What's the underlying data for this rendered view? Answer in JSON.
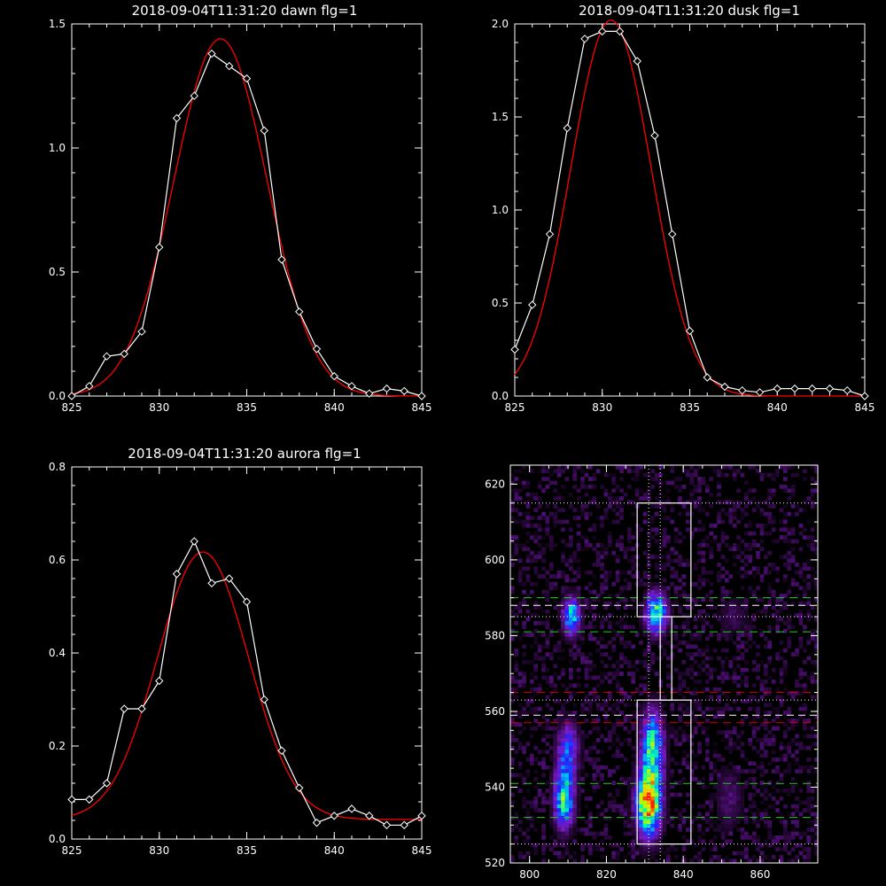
{
  "chart_data": [
    {
      "type": "line",
      "title": "2018-09-04T11:31:20 dawn flg=1",
      "xlim": [
        825,
        845
      ],
      "ylim": [
        0,
        1.5
      ],
      "xticks": [
        "825",
        "830",
        "835",
        "840",
        "845"
      ],
      "yticks": [
        "0.0",
        "0.5",
        "1.0",
        "1.5"
      ],
      "colors": {
        "data": "#ffffff",
        "fit": "#ff0000"
      },
      "series": [
        {
          "role": "data",
          "marker": "diamond",
          "x": [
            825,
            826,
            827,
            828,
            829,
            830,
            831,
            832,
            833,
            834,
            835,
            836,
            837,
            838,
            839,
            840,
            841,
            842,
            843,
            844,
            845
          ],
          "y": [
            0.0,
            0.04,
            0.16,
            0.17,
            0.26,
            0.6,
            1.12,
            1.21,
            1.38,
            1.33,
            1.28,
            1.07,
            0.55,
            0.34,
            0.19,
            0.08,
            0.04,
            0.01,
            0.03,
            0.02,
            0.0
          ]
        },
        {
          "role": "fit",
          "amp": 1.44,
          "center": 833.5,
          "sigma": 2.65,
          "offset": 0.0
        }
      ]
    },
    {
      "type": "line",
      "title": "2018-09-04T11:31:20 dusk flg=1",
      "xlim": [
        825,
        845
      ],
      "ylim": [
        0,
        2.0
      ],
      "xticks": [
        "825",
        "830",
        "835",
        "840",
        "845"
      ],
      "yticks": [
        "0.0",
        "0.5",
        "1.0",
        "1.5",
        "2.0"
      ],
      "colors": {
        "data": "#ffffff",
        "fit": "#ff0000"
      },
      "series": [
        {
          "role": "data",
          "marker": "diamond",
          "x": [
            825,
            826,
            827,
            828,
            829,
            830,
            831,
            832,
            833,
            834,
            835,
            836,
            837,
            838,
            839,
            840,
            841,
            842,
            843,
            844,
            845
          ],
          "y": [
            0.25,
            0.49,
            0.87,
            1.44,
            1.92,
            1.96,
            1.96,
            1.8,
            1.4,
            0.87,
            0.35,
            0.1,
            0.05,
            0.03,
            0.02,
            0.04,
            0.04,
            0.04,
            0.04,
            0.03,
            0.0
          ]
        },
        {
          "role": "fit",
          "amp": 2.02,
          "center": 830.5,
          "sigma": 2.3,
          "offset": 0.0
        }
      ]
    },
    {
      "type": "line",
      "title": "2018-09-04T11:31:20 aurora flg=1",
      "xlim": [
        825,
        845
      ],
      "ylim": [
        0,
        0.8
      ],
      "xticks": [
        "825",
        "830",
        "835",
        "840",
        "845"
      ],
      "yticks": [
        "0.0",
        "0.2",
        "0.4",
        "0.6",
        "0.8"
      ],
      "colors": {
        "data": "#ffffff",
        "fit": "#ff0000"
      },
      "series": [
        {
          "role": "data",
          "marker": "diamond",
          "x": [
            825,
            826,
            827,
            828,
            829,
            830,
            831,
            832,
            833,
            834,
            835,
            836,
            837,
            838,
            839,
            840,
            841,
            842,
            843,
            844,
            845
          ],
          "y": [
            0.085,
            0.085,
            0.12,
            0.28,
            0.28,
            0.34,
            0.57,
            0.64,
            0.55,
            0.56,
            0.51,
            0.3,
            0.19,
            0.11,
            0.035,
            0.05,
            0.065,
            0.05,
            0.03,
            0.03,
            0.05
          ]
        },
        {
          "role": "fit",
          "amp": 0.575,
          "center": 832.5,
          "sigma": 2.6,
          "offset": 0.042
        }
      ]
    },
    {
      "type": "heatmap",
      "xlim": [
        795,
        875
      ],
      "ylim": [
        520,
        625
      ],
      "xticks": [
        "800",
        "820",
        "840",
        "860"
      ],
      "yticks": [
        "520",
        "540",
        "560",
        "580",
        "600",
        "620"
      ],
      "colormap": [
        "#000000",
        "#3a0a55",
        "#7a1cc8",
        "#2020ff",
        "#00aaff",
        "#00ffaa",
        "#aaff00",
        "#ffcc00",
        "#ff2000"
      ],
      "blobs": [
        {
          "x": 809,
          "y": 537,
          "sx": 1.8,
          "sy": 5.5,
          "a": 0.62
        },
        {
          "x": 810,
          "y": 550,
          "sx": 2.0,
          "sy": 5.0,
          "a": 0.38
        },
        {
          "x": 811,
          "y": 585,
          "sx": 1.6,
          "sy": 3.5,
          "a": 0.6
        },
        {
          "x": 831,
          "y": 536,
          "sx": 2.2,
          "sy": 6.0,
          "a": 0.95
        },
        {
          "x": 832,
          "y": 551,
          "sx": 2.0,
          "sy": 6.5,
          "a": 0.6
        },
        {
          "x": 833,
          "y": 586,
          "sx": 2.0,
          "sy": 3.8,
          "a": 0.62
        },
        {
          "x": 852,
          "y": 537,
          "sx": 2.5,
          "sy": 6.0,
          "a": 0.15
        },
        {
          "x": 853,
          "y": 585,
          "sx": 2.5,
          "sy": 4.0,
          "a": 0.12
        }
      ],
      "green_lines": [
        532,
        541,
        581,
        590
      ],
      "red_lines": [
        557,
        565
      ],
      "white_dashed_lines": [
        559,
        588
      ],
      "dotted_h_lines": [
        525,
        563,
        585,
        615
      ],
      "dotted_v_lines": [
        831,
        834
      ],
      "boxes": [
        {
          "x0": 828,
          "x1": 842,
          "y0": 585,
          "y1": 615
        },
        {
          "x0": 828,
          "x1": 842,
          "y0": 525,
          "y1": 563
        },
        {
          "x0": 834,
          "x1": 837,
          "y0": 563,
          "y1": 585
        }
      ],
      "line_colors": {
        "green": "#22cc22",
        "red": "#dd0000",
        "white": "#ffffff"
      }
    }
  ]
}
